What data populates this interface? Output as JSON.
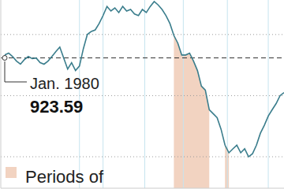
{
  "chart_data": {
    "type": "line",
    "color": "#3a7d8c",
    "line_style": "solid",
    "grid": true,
    "tick_labels": false,
    "x": [
      5,
      10,
      15,
      20,
      25,
      30,
      35,
      40,
      45,
      50,
      55,
      60,
      65,
      70,
      75,
      80,
      85,
      90,
      95,
      100,
      105,
      110,
      115,
      120,
      125,
      130,
      135,
      140,
      145,
      150,
      155,
      160,
      165,
      170,
      175,
      180,
      185,
      190,
      195,
      200,
      205,
      210,
      215,
      220,
      225,
      230,
      235,
      240,
      245,
      250,
      255,
      260,
      265,
      270,
      275,
      280,
      285,
      290,
      295,
      300,
      305,
      310,
      315,
      320,
      325,
      330,
      335,
      340,
      345,
      350,
      355,
      360
    ],
    "values": [
      933,
      939,
      928,
      913,
      903,
      918,
      928,
      921,
      923,
      908,
      903,
      913,
      928,
      944,
      959,
      923,
      887,
      908,
      882,
      897,
      954,
      1000,
      1010,
      1015,
      1036,
      1062,
      1092,
      1077,
      1087,
      1072,
      1092,
      1077,
      1082,
      1067,
      1062,
      1082,
      1072,
      1092,
      1108,
      1097,
      1082,
      1062,
      1036,
      997,
      972,
      933,
      933,
      939,
      913,
      882,
      831,
      818,
      754,
      741,
      728,
      690,
      638,
      613,
      626,
      638,
      613,
      626,
      600,
      610,
      638,
      677,
      703,
      733,
      754,
      774,
      800,
      810
    ],
    "xlim": [
      0,
      360
    ],
    "ylim": [
      497,
      1113
    ],
    "xticks": [
      100,
      130,
      183,
      232,
      288,
      340
    ],
    "yticks": [
      600,
      800,
      1000
    ],
    "reference_line": {
      "value": 923.59,
      "label": "Jan. 1980",
      "line_style": "dashed"
    },
    "shaded_periods": {
      "label": "Periods of",
      "color": "#f2d3c1",
      "ranges": [
        [
          220,
          265
        ],
        [
          285,
          290
        ]
      ]
    }
  }
}
